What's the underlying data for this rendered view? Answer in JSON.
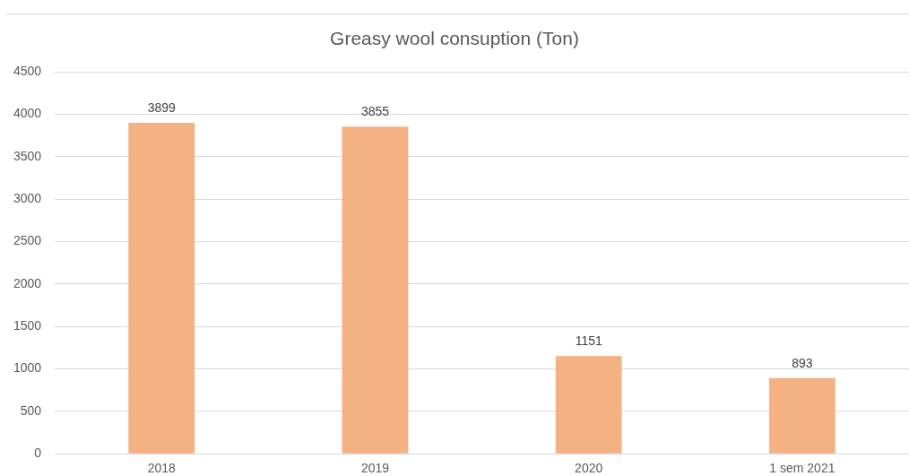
{
  "chart_data": {
    "type": "bar",
    "title": "Greasy wool consuption (Ton)",
    "categories": [
      "2018",
      "2019",
      "2020",
      "1 sem 2021"
    ],
    "values": [
      3899,
      3855,
      1151,
      893
    ],
    "color": "#f4b183",
    "ylim": [
      0,
      4500
    ],
    "yticks": [
      0,
      500,
      1000,
      1500,
      2000,
      2500,
      3000,
      3500,
      4000,
      4500
    ],
    "grid": "y",
    "data_labels": true
  }
}
